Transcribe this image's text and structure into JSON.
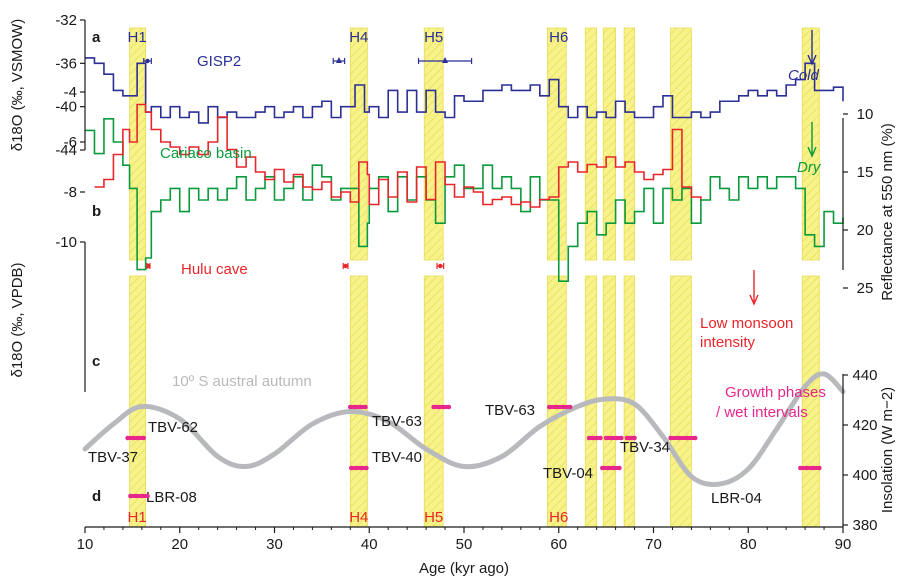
{
  "chart_data": {
    "type": "line",
    "x_label": "Age (kyr ago)",
    "x_range": [
      10,
      90
    ],
    "x_ticks": [
      "10",
      "20",
      "30",
      "40",
      "50",
      "60",
      "70",
      "80",
      "90"
    ],
    "panel_letters": [
      "a",
      "b",
      "c",
      "d"
    ],
    "colors": {
      "gisp2": "#2b2f96",
      "cariaco": "#0a9a3c",
      "hulu": "#e8262a",
      "insolation": "#b8b9bd",
      "growth": "#e8278c",
      "band": "#f7f28a",
      "heinrich_top": "#2b2f96",
      "heinrich_bottom": "#e8262a"
    },
    "left_axes": [
      {
        "label": "δ18O (‰, VSMOW)",
        "ticks": [
          "-32",
          "-36",
          "-40",
          "-44"
        ]
      },
      {
        "label": "δ18O (‰, VPDB)",
        "ticks": [
          "-10",
          "-8",
          "-6",
          "-4"
        ]
      }
    ],
    "right_axes": [
      {
        "label": "Reflectance at 550 nm (%)",
        "ticks": [
          "10",
          "15",
          "20",
          "25"
        ]
      },
      {
        "label": "Insolation (W m−2)",
        "ticks": [
          "440",
          "420",
          "400",
          "380"
        ]
      }
    ],
    "heinrich_top_labels": [
      "H1",
      "H4",
      "H5",
      "H6"
    ],
    "heinrich_bottom_labels": [
      "H1",
      "H4",
      "H5",
      "H6"
    ],
    "heinrich_ages": [
      15.5,
      38.9,
      46.8,
      60.0
    ],
    "bands": [
      {
        "start": 14.7,
        "end": 16.4
      },
      {
        "start": 38.0,
        "end": 39.8
      },
      {
        "start": 45.8,
        "end": 47.8
      },
      {
        "start": 58.8,
        "end": 60.8
      },
      {
        "start": 62.8,
        "end": 64.0
      },
      {
        "start": 64.7,
        "end": 66.0
      },
      {
        "start": 66.9,
        "end": 68.0
      },
      {
        "start": 71.8,
        "end": 74.0
      },
      {
        "start": 85.7,
        "end": 87.5
      }
    ],
    "series": [
      {
        "name": "GISP2",
        "proxy": "δ18O (‰, VSMOW)",
        "x": [
          10,
          11,
          12,
          13,
          14,
          14.7,
          15.5,
          16.4,
          17,
          18,
          19,
          20,
          21,
          22,
          23,
          24,
          25,
          26,
          27,
          28,
          29,
          30,
          31,
          32,
          33,
          34,
          35,
          36,
          37,
          38,
          38.5,
          39.5,
          40,
          41,
          42,
          43,
          44,
          45,
          46,
          47,
          48,
          49,
          50,
          51,
          52,
          53,
          54,
          55,
          56,
          57,
          58,
          59,
          60,
          61,
          62,
          63,
          64,
          65,
          66,
          67,
          68,
          69,
          70,
          71,
          72,
          73,
          74,
          75,
          76,
          77,
          78,
          79,
          80,
          81,
          82,
          83,
          84,
          85,
          86,
          87,
          88,
          89,
          90
        ],
        "y": [
          -35.5,
          -36,
          -37,
          -38.5,
          -39,
          -39,
          -36,
          -40.5,
          -40,
          -41,
          -40,
          -41,
          -40.5,
          -41.5,
          -40,
          -41,
          -40.5,
          -41,
          -41,
          -40.5,
          -40,
          -41,
          -40.5,
          -40,
          -41,
          -40,
          -39.5,
          -41,
          -40,
          -40,
          -38,
          -40.5,
          -40,
          -41,
          -38.5,
          -40.5,
          -38.5,
          -40.5,
          -38.5,
          -40.5,
          -41,
          -39,
          -39.5,
          -39.5,
          -38.5,
          -38.5,
          -38,
          -38.5,
          -38.5,
          -38,
          -39,
          -37.5,
          -40,
          -41,
          -40,
          -41,
          -40.5,
          -41,
          -39.5,
          -40.5,
          -41,
          -41,
          -40,
          -39,
          -41,
          -41,
          -40.5,
          -41,
          -40.5,
          -39.5,
          -39.5,
          -39,
          -38.5,
          -39,
          -38.5,
          -39,
          -38,
          -37.5,
          -36,
          -38.5,
          -38.5,
          -38.2,
          -39.5
        ]
      },
      {
        "name": "Cariaco basin",
        "proxy": "Reflectance at 550 nm (%)",
        "x": [
          10,
          11,
          12,
          13,
          14,
          14.7,
          15.5,
          16.4,
          17,
          18,
          19,
          20,
          21,
          22,
          23,
          24,
          25,
          26,
          27,
          28,
          29,
          30,
          31,
          32,
          33,
          34,
          35,
          36,
          37,
          38,
          38.9,
          39.8,
          40,
          41,
          42,
          43,
          44,
          45,
          46,
          47,
          48,
          49,
          50,
          51,
          52,
          53,
          54,
          55,
          56,
          57,
          58,
          59,
          60,
          61,
          62,
          63,
          64,
          65,
          66,
          67,
          68,
          69,
          70,
          71,
          72,
          73,
          74,
          75,
          76,
          77,
          78,
          79,
          80,
          81,
          82,
          83,
          84,
          85,
          86,
          87,
          88,
          89,
          90
        ],
        "y": [
          9,
          11,
          8,
          10,
          12,
          14,
          21,
          20,
          16,
          15,
          14,
          16,
          14,
          15,
          14,
          15,
          14,
          13,
          15,
          14,
          13,
          15,
          14,
          13,
          15,
          12,
          13,
          15,
          14,
          14,
          19,
          17,
          14,
          13,
          16,
          13,
          15,
          13,
          15,
          17,
          13,
          12,
          14,
          14,
          12,
          14,
          13,
          14,
          16,
          13,
          15,
          15,
          22,
          19,
          17,
          16,
          18,
          17,
          15,
          17,
          16,
          14,
          17,
          14,
          15,
          14,
          17,
          15,
          13,
          14,
          15,
          13,
          14,
          13,
          14,
          13,
          13,
          14,
          18,
          19,
          16,
          17,
          16.5
        ]
      },
      {
        "name": "Hulu cave",
        "proxy": "δ18O (‰, VPDB)",
        "x": [
          11,
          12,
          13,
          14,
          14.7,
          15.5,
          16.4,
          17,
          18,
          19,
          20,
          21,
          22,
          23,
          24,
          25,
          26,
          27,
          28,
          29,
          30,
          31,
          32,
          33,
          34,
          35,
          36,
          37,
          38,
          38.9,
          39.8,
          40,
          41,
          42,
          43,
          44,
          45,
          46,
          47,
          48,
          49,
          50,
          51,
          52,
          53,
          54,
          55,
          56,
          57,
          58,
          59,
          60,
          61,
          62,
          63,
          64,
          65,
          66,
          67,
          68,
          69,
          70,
          71,
          72,
          73,
          74,
          75
        ],
        "y": [
          -7.8,
          -7.5,
          -6.5,
          -5.5,
          -6,
          -4.5,
          -4.8,
          -5.5,
          -6,
          -6.2,
          -6.5,
          -6.2,
          -6.5,
          -6,
          -5,
          -6.3,
          -7,
          -6.6,
          -7.2,
          -7.5,
          -7.1,
          -7.6,
          -7.3,
          -7.8,
          -7.9,
          -7.6,
          -8.2,
          -8,
          -8.4,
          -6.8,
          -7.3,
          -8.5,
          -7.5,
          -8.2,
          -7.2,
          -8.4,
          -7,
          -8.3,
          -6.8,
          -7.7,
          -8.2,
          -7.8,
          -8,
          -8.5,
          -8.3,
          -8.2,
          -8.5,
          -8.4,
          -8.6,
          -8.3,
          -8.2,
          -7,
          -6.8,
          -7.2,
          -6.9,
          -7,
          -6.6,
          -7,
          -6.8,
          -7.2,
          -7.5,
          -7.3,
          -7.1,
          -5.5,
          -7.8,
          -8.2,
          -8.3
        ]
      },
      {
        "name": "10º S austral autumn",
        "proxy": "Insolation (W m−2)",
        "x": [
          10,
          13,
          16,
          20,
          24,
          27,
          30,
          34,
          38,
          42,
          46,
          50,
          54,
          58,
          62,
          65,
          68,
          71,
          74,
          77,
          80,
          83,
          86,
          88,
          90
        ],
        "y": [
          410,
          420,
          427,
          422,
          407,
          403,
          408,
          420,
          425,
          421,
          410,
          403,
          407,
          419,
          427,
          430,
          428,
          415,
          399,
          396,
          402,
          418,
          435,
          440,
          433
        ]
      }
    ],
    "error_bars": [
      {
        "series": "GISP2",
        "center": 16.6,
        "half_width": 0.4,
        "marker": "circle"
      },
      {
        "series": "GISP2",
        "center": 36.8,
        "half_width": 0.6,
        "marker": "triangle"
      },
      {
        "series": "GISP2",
        "center": 48,
        "half_width": 2.8,
        "marker": "triangle"
      },
      {
        "series": "Hulu cave",
        "center": 16.7,
        "half_width": 0.15,
        "marker": "circle"
      },
      {
        "series": "Hulu cave",
        "center": 37.5,
        "half_width": 0.25,
        "marker": "circle"
      },
      {
        "series": "Hulu cave",
        "center": 47.5,
        "half_width": 0.35,
        "marker": "circle"
      }
    ],
    "annotations": [
      {
        "text": "Cold",
        "color": "#2b2f96",
        "arrow": true
      },
      {
        "text": "Dry",
        "color": "#0a9a3c",
        "arrow": true
      },
      {
        "text": "Low monsoon intensity",
        "color": "#e8262a",
        "arrow": true
      },
      {
        "text": "Growth phases / wet intervals",
        "color": "#e8278c",
        "arrow": false
      }
    ],
    "growth_phases": [
      {
        "label": "TBV-62",
        "row": 1,
        "intervals": [
          [
            14.5,
            16.2
          ]
        ]
      },
      {
        "label": "TBV-37",
        "row": 1,
        "intervals": []
      },
      {
        "label": "LBR-08",
        "row": 3,
        "intervals": [
          [
            14.8,
            16.6
          ]
        ]
      },
      {
        "label": "TBV-63",
        "row": 0,
        "intervals": [
          [
            38.0,
            39.6
          ],
          [
            46.8,
            48.4
          ]
        ]
      },
      {
        "label": "TBV-40",
        "row": 2,
        "intervals": [
          [
            38.1,
            39.7
          ]
        ]
      },
      {
        "label": "TBV-63",
        "row": 0,
        "intervals": [
          [
            59.0,
            61.2
          ]
        ]
      },
      {
        "label": "TBV-34",
        "row": 1,
        "intervals": [
          [
            63.2,
            64.4
          ],
          [
            65.0,
            66.6
          ],
          [
            67.2,
            68.0
          ],
          [
            71.8,
            74.4
          ]
        ]
      },
      {
        "label": "TBV-04",
        "row": 2,
        "intervals": [
          [
            64.6,
            66.4
          ]
        ]
      },
      {
        "label": "LBR-04",
        "row": 2,
        "intervals": [
          [
            85.5,
            87.5
          ]
        ]
      }
    ]
  }
}
